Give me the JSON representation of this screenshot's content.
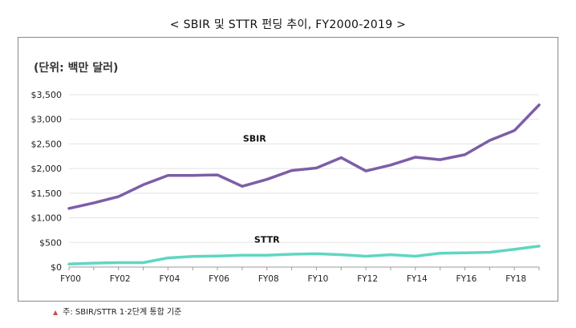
{
  "chart_data": {
    "type": "line",
    "title": "< SBIR 및 STTR 펀딩 추이, FY2000-2019 >",
    "unit_label": "(단위: 백만 달러)",
    "ylim": [
      0,
      3500
    ],
    "y_ticks": [
      "$0",
      "$500",
      "$1,000",
      "$1,500",
      "$2,000",
      "$2,500",
      "$3,000",
      "$3,500"
    ],
    "x_ticks": [
      "FY00",
      "FY02",
      "FY04",
      "FY06",
      "FY08",
      "FY10",
      "FY12",
      "FY14",
      "FY16",
      "FY18"
    ],
    "x": [
      "FY00",
      "FY01",
      "FY02",
      "FY03",
      "FY04",
      "FY05",
      "FY06",
      "FY07",
      "FY08",
      "FY09",
      "FY10",
      "FY11",
      "FY12",
      "FY13",
      "FY14",
      "FY15",
      "FY16",
      "FY17",
      "FY18",
      "FY19"
    ],
    "series": [
      {
        "name": "SBIR",
        "color": "#7b5ea7",
        "values": [
          1190,
          1300,
          1430,
          1670,
          1860,
          1860,
          1870,
          1640,
          1780,
          1960,
          2010,
          2220,
          1950,
          2070,
          2230,
          2180,
          2280,
          2570,
          2770,
          3290
        ]
      },
      {
        "name": "STTR",
        "color": "#5fd6c1",
        "values": [
          60,
          80,
          90,
          90,
          185,
          215,
          225,
          240,
          240,
          260,
          270,
          250,
          220,
          250,
          220,
          280,
          290,
          300,
          360,
          425
        ]
      }
    ],
    "grid": true,
    "note": "주: SBIR/STTR 1·2단계 통합 기준"
  }
}
